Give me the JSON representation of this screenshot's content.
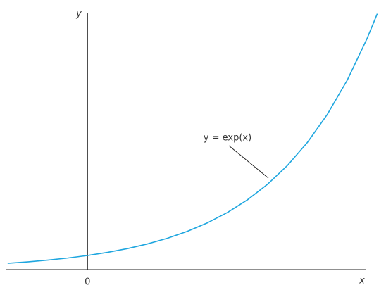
{
  "chart_data": {
    "type": "line",
    "xlabel": "x",
    "ylabel": "y",
    "annotation": "y = exp(x)",
    "x": [
      -0.8,
      -0.6,
      -0.4,
      -0.2,
      0,
      0.2,
      0.4,
      0.6,
      0.8,
      1.0,
      1.2,
      1.4,
      1.6,
      1.8,
      2.0,
      2.2,
      2.4,
      2.6,
      2.8,
      2.9
    ],
    "series": [
      {
        "name": "y = exp(x)",
        "color": "#1ea6df",
        "values": [
          0.449,
          0.549,
          0.67,
          0.819,
          1,
          1.221,
          1.492,
          1.822,
          2.226,
          2.718,
          3.32,
          4.055,
          4.953,
          6.05,
          7.389,
          9.025,
          11.023,
          13.464,
          16.445,
          18.174
        ]
      }
    ],
    "xlim": [
      -0.82,
      2.79
    ],
    "ylim": [
      0,
      18.2
    ],
    "xticks": [
      0
    ]
  }
}
